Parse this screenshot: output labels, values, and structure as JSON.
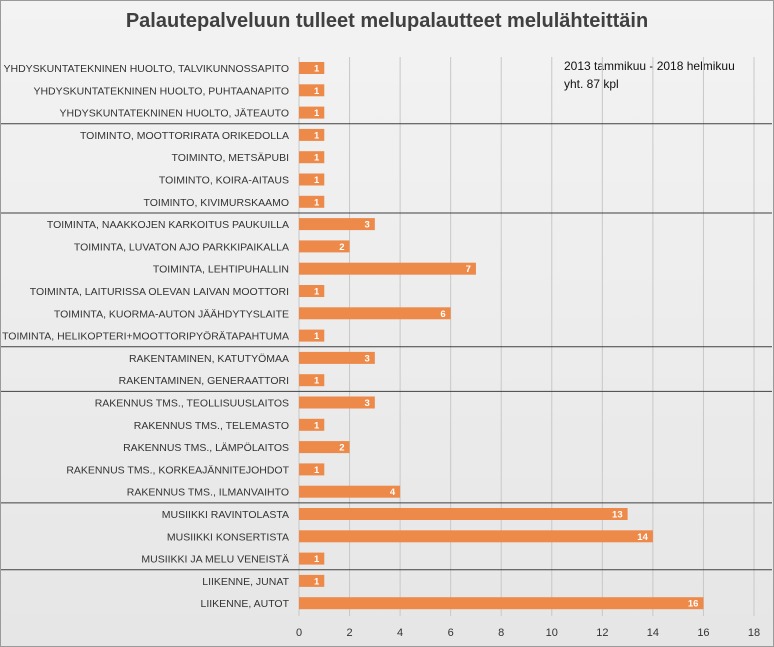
{
  "chart_data": {
    "type": "bar",
    "orientation": "horizontal",
    "title": "Palautepalveluun tulleet melupalautteet melulähteittäin",
    "annotation": [
      "2013 tammikuu - 2018 helmikuu",
      "yht. 87 kpl"
    ],
    "xlim": [
      0,
      18
    ],
    "xticks": [
      0,
      2,
      4,
      6,
      8,
      10,
      12,
      14,
      16,
      18
    ],
    "grid": true,
    "bar_color": "#ed8a4a",
    "categories": [
      "YHDYSKUNTATEKNINEN HUOLTO, TALVIKUNNOSSAPITO",
      "YHDYSKUNTATEKNINEN HUOLTO, PUHTAANAPITO",
      "YHDYSKUNTATEKNINEN HUOLTO, JÄTEAUTO",
      "TOIMINTO, MOOTTORIRATA ORIKEDOLLA",
      "TOIMINTO, METSÄPUBI",
      "TOIMINTO, KOIRA-AITAUS",
      "TOIMINTO, KIVIMURSKAAMO",
      "TOIMINTA, NAAKKOJEN KARKOITUS PAUKUILLA",
      "TOIMINTA, LUVATON AJO PARKKIPAIKALLA",
      "TOIMINTA, LEHTIPUHALLIN",
      "TOIMINTA, LAITURISSA OLEVAN LAIVAN MOOTTORI",
      "TOIMINTA, KUORMA-AUTON JÄÄHDYTYSLAITE",
      "TOIMINTA, HELIKOPTERI+MOOTTORIPYÖRÄTAPAHTUMA",
      "RAKENTAMINEN, KATUTYÖMAA",
      "RAKENTAMINEN, GENERAATTORI",
      "RAKENNUS TMS., TEOLLISUUSLAITOS",
      "RAKENNUS TMS., TELEMASTO",
      "RAKENNUS TMS., LÄMPÖLAITOS",
      "RAKENNUS TMS., KORKEAJÄNNITEJOHDOT",
      "RAKENNUS TMS., ILMANVAIHTO",
      "MUSIIKKI RAVINTOLASTA",
      "MUSIIKKI KONSERTISTA",
      "MUSIIKKI JA MELU VENEISTÄ",
      "LIIKENNE, JUNAT",
      "LIIKENNE, AUTOT"
    ],
    "values": [
      1,
      1,
      1,
      1,
      1,
      1,
      1,
      3,
      2,
      7,
      1,
      6,
      1,
      3,
      1,
      3,
      1,
      2,
      1,
      4,
      13,
      14,
      1,
      1,
      16
    ],
    "group_separators_after_index": [
      2,
      6,
      12,
      14,
      19,
      22
    ]
  }
}
